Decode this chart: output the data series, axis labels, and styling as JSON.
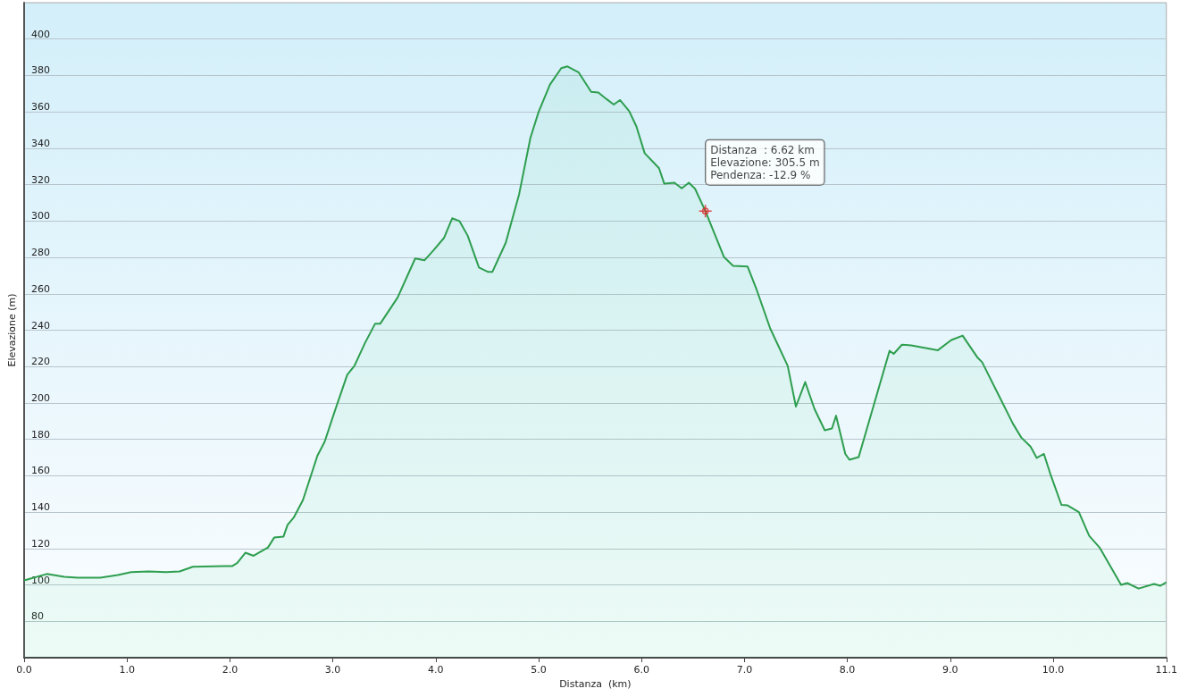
{
  "chart_data": {
    "type": "area",
    "xlabel": "Distanza  (km)",
    "ylabel": "Elevazione (m)",
    "x": [
      0,
      0.22,
      0.39,
      0.52,
      0.74,
      0.91,
      1.04,
      1.21,
      1.38,
      1.51,
      1.64,
      1.94,
      2.02,
      2.07,
      2.15,
      2.23,
      2.37,
      2.43,
      2.52,
      2.56,
      2.62,
      2.71,
      2.85,
      2.92,
      3.01,
      3.14,
      3.21,
      3.31,
      3.41,
      3.46,
      3.63,
      3.8,
      3.89,
      3.98,
      4.08,
      4.16,
      4.23,
      4.31,
      4.42,
      4.51,
      4.55,
      4.61,
      4.68,
      4.81,
      4.92,
      5.0,
      5.11,
      5.22,
      5.28,
      5.39,
      5.51,
      5.58,
      5.66,
      5.73,
      5.79,
      5.88,
      5.95,
      6.03,
      6.17,
      6.22,
      6.32,
      6.39,
      6.46,
      6.52,
      6.62,
      6.8,
      6.89,
      7.03,
      7.12,
      7.25,
      7.42,
      7.5,
      7.59,
      7.68,
      7.78,
      7.85,
      7.89,
      7.98,
      8.02,
      8.11,
      8.41,
      8.45,
      8.53,
      8.62,
      8.88,
      9.01,
      9.12,
      9.26,
      9.31,
      9.48,
      9.61,
      9.69,
      9.78,
      9.84,
      9.91,
      9.97,
      10.08,
      10.14,
      10.25,
      10.35,
      10.45,
      10.66,
      10.72,
      10.83,
      10.98,
      11.04,
      11.1
    ],
    "series": [
      {
        "color": "#2e9e4f",
        "values": [
          102.5,
          106,
          104.4,
          104,
          104,
          105.4,
          107,
          107.4,
          107,
          107.4,
          110,
          110.3,
          110.3,
          112,
          117.7,
          116,
          120.6,
          126,
          126.5,
          133,
          137,
          146.7,
          171,
          178.6,
          194,
          215.5,
          220.4,
          232.7,
          243.5,
          243.5,
          258,
          279.4,
          278.4,
          284,
          290.7,
          301.5,
          300,
          292,
          274.4,
          272,
          272,
          279.4,
          288,
          314.7,
          345.7,
          360,
          375,
          384,
          385,
          381.6,
          371,
          370.6,
          367,
          364,
          366.5,
          360.4,
          352,
          337.3,
          329,
          320.6,
          321,
          318,
          321,
          317.7,
          305.5,
          280.3,
          275.4,
          275,
          262,
          241,
          220.4,
          198,
          211.5,
          196.8,
          185,
          186,
          193,
          172,
          168.8,
          170.3,
          228.7,
          227,
          232,
          231.7,
          229,
          234.6,
          237,
          225.3,
          222.4,
          203.2,
          188.5,
          181,
          176,
          169.8,
          172,
          161.4,
          144,
          143.7,
          140,
          127,
          120.6,
          100,
          101,
          98,
          100.5,
          99.5,
          101.5
        ]
      }
    ],
    "xlim": [
      0,
      11.1
    ],
    "xticks": [
      {
        "value": 0,
        "label": "0.0"
      },
      {
        "value": 1,
        "label": "1.0"
      },
      {
        "value": 2,
        "label": "2.0"
      },
      {
        "value": 3,
        "label": "3.0"
      },
      {
        "value": 4,
        "label": "4.0"
      },
      {
        "value": 5,
        "label": "5.0"
      },
      {
        "value": 6,
        "label": "6.0"
      },
      {
        "value": 7,
        "label": "7.0"
      },
      {
        "value": 8,
        "label": "8.0"
      },
      {
        "value": 9,
        "label": "9.0"
      },
      {
        "value": 10,
        "label": "10.0"
      },
      11.1
    ],
    "ylim": [
      60,
      420
    ],
    "yticks": [
      80,
      100,
      120,
      140,
      160,
      180,
      200,
      220,
      240,
      260,
      280,
      300,
      320,
      340,
      360,
      380,
      400
    ],
    "grid": "y",
    "marker": "none",
    "line_style": "solid",
    "annotations": [
      {
        "text": "Distanza  : 6.62 km\nElevazione: 305.5 m\nPendenza: -12.9 %",
        "x": 6.62,
        "y": 305.5
      }
    ]
  }
}
